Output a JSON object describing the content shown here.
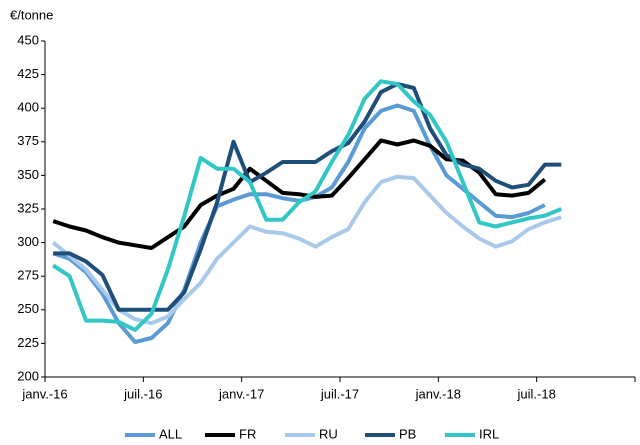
{
  "chart_data": {
    "type": "line",
    "y_label": "€/tonne",
    "categories": [
      "janv.-16",
      null,
      null,
      null,
      null,
      null,
      "juil.-16",
      null,
      null,
      null,
      null,
      null,
      "janv.-17",
      null,
      null,
      null,
      null,
      null,
      "juil.-17",
      null,
      null,
      null,
      null,
      null,
      "janv.-18",
      null,
      null,
      null,
      null,
      null,
      "juil.-18",
      null,
      null,
      null,
      null,
      null
    ],
    "ylim": [
      200,
      450
    ],
    "yticks": [
      200,
      225,
      250,
      275,
      300,
      325,
      350,
      375,
      400,
      425,
      450
    ],
    "legend": "bottom",
    "series": [
      {
        "name": "ALL",
        "color": "#5b9bd5",
        "values": [
          292,
          288,
          278,
          262,
          240,
          226,
          229,
          240,
          265,
          300,
          327,
          332,
          336,
          336,
          333,
          331,
          334,
          341,
          360,
          385,
          398,
          402,
          398,
          372,
          350,
          340,
          330,
          320,
          319,
          322,
          328,
          null,
          null,
          null,
          null,
          null
        ]
      },
      {
        "name": "FR",
        "color": "#000000",
        "values": [
          316,
          312,
          309,
          304,
          300,
          298,
          296,
          304,
          312,
          328,
          335,
          340,
          355,
          346,
          337,
          336,
          334,
          335,
          348,
          362,
          376,
          373,
          376,
          372,
          362,
          361,
          352,
          336,
          335,
          337,
          347,
          null,
          null,
          null,
          null,
          null
        ]
      },
      {
        "name": "RU",
        "color": "#a9c9eb",
        "values": [
          300,
          290,
          280,
          265,
          250,
          243,
          240,
          245,
          258,
          270,
          288,
          300,
          312,
          308,
          307,
          303,
          297,
          304,
          310,
          330,
          345,
          349,
          348,
          335,
          322,
          312,
          303,
          297,
          301,
          310,
          315,
          319,
          null,
          null,
          null,
          null
        ]
      },
      {
        "name": "PB",
        "color": "#1f4e79",
        "values": [
          292,
          292,
          286,
          276,
          250,
          250,
          250,
          250,
          263,
          295,
          330,
          375,
          345,
          352,
          360,
          360,
          360,
          368,
          374,
          390,
          412,
          418,
          415,
          385,
          365,
          358,
          355,
          346,
          341,
          343,
          358,
          358,
          null,
          null,
          null,
          null
        ]
      },
      {
        "name": "IRL",
        "color": "#33c6c6",
        "values": [
          283,
          275,
          242,
          242,
          241,
          235,
          247,
          280,
          320,
          363,
          355,
          355,
          345,
          317,
          317,
          330,
          338,
          360,
          380,
          407,
          420,
          418,
          405,
          395,
          375,
          345,
          315,
          312,
          315,
          318,
          320,
          325,
          null,
          null,
          null,
          null
        ]
      }
    ]
  }
}
